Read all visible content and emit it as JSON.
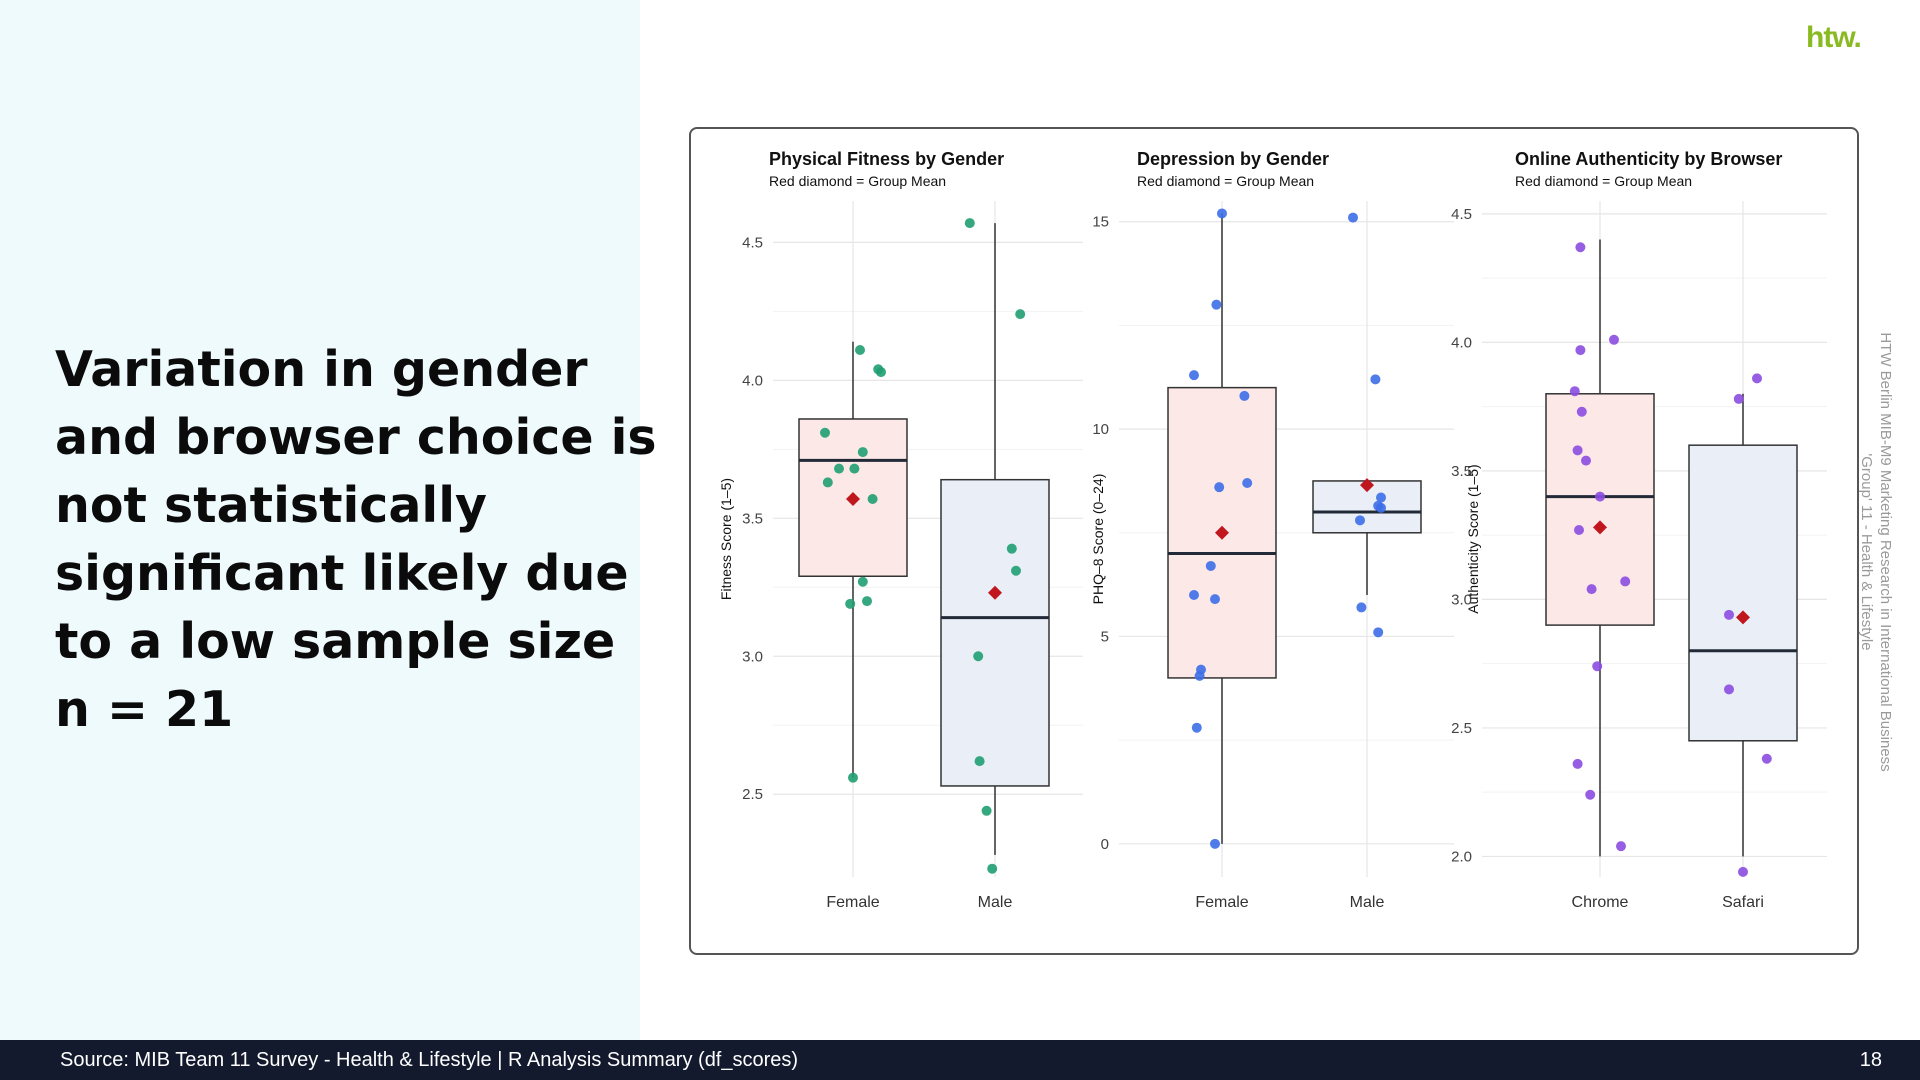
{
  "headline_lines": [
    "Variation in gender",
    "and browser choice is",
    "not statistically",
    "significant likely due",
    "to a low sample size",
    "n = 21"
  ],
  "side_note": {
    "line1": "HTW Berlin MIB-M9 Marketing Research in International Business",
    "line2": "'Group' 11 - Health & Lifestyle"
  },
  "footer": {
    "source": "Source: MIB Team 11 Survey - Health & Lifestyle | R Analysis Summary (df_scores)",
    "page_number": "18"
  },
  "logo": {
    "text": "htw.",
    "color": "#8aba22"
  },
  "colors": {
    "female_box_fill": "#fce9e7",
    "male_box_fill": "#e9eef7",
    "mean_marker": "#c0171f",
    "median_line": "#222a38",
    "grid": "#e6e6e6"
  },
  "chart_data": [
    {
      "type": "box",
      "title": "Physical Fitness by Gender",
      "subtitle": "Red diamond = Group Mean",
      "xlabel": "",
      "ylabel": "Fitness Score (1–5)",
      "ylim": [
        2.2,
        4.65
      ],
      "yticks": [
        2.5,
        3.0,
        3.5,
        4.0,
        4.5
      ],
      "ytick_labels": [
        "2.5",
        "3.0",
        "3.5",
        "4.0",
        "4.5"
      ],
      "categories": [
        "Female",
        "Male"
      ],
      "point_color": "#1f9e72",
      "grid": true,
      "boxes": [
        {
          "q1": 3.29,
          "median": 3.71,
          "q3": 3.86,
          "whisker_low": 2.56,
          "whisker_high": 4.14,
          "mean": 3.57,
          "box_fill": "#fce9e7"
        },
        {
          "q1": 2.53,
          "median": 3.14,
          "q3": 3.64,
          "whisker_low": 2.28,
          "whisker_high": 4.57,
          "mean": 3.23,
          "box_fill": "#e9eef7"
        }
      ],
      "points": [
        [
          [
            -0.2,
            3.81
          ],
          [
            0.05,
            4.11
          ],
          [
            0.18,
            4.04
          ],
          [
            0.2,
            4.03
          ],
          [
            0.07,
            3.74
          ],
          [
            -0.1,
            3.68
          ],
          [
            0.01,
            3.68
          ],
          [
            -0.18,
            3.63
          ],
          [
            0.14,
            3.57
          ],
          [
            0.07,
            3.27
          ],
          [
            -0.02,
            3.19
          ],
          [
            0.1,
            3.2
          ],
          [
            0.0,
            2.56
          ]
        ],
        [
          [
            -0.18,
            4.57
          ],
          [
            0.18,
            4.24
          ],
          [
            0.12,
            3.39
          ],
          [
            0.15,
            3.31
          ],
          [
            -0.12,
            3.0
          ],
          [
            -0.11,
            2.62
          ],
          [
            -0.06,
            2.44
          ],
          [
            -0.02,
            2.23
          ]
        ]
      ]
    },
    {
      "type": "box",
      "title": "Depression by Gender",
      "subtitle": "Red diamond = Group Mean",
      "xlabel": "",
      "ylabel": "PHQ–8 Score (0–24)",
      "ylim": [
        -0.8,
        15.5
      ],
      "yticks": [
        0,
        5,
        10,
        15
      ],
      "ytick_labels": [
        "0",
        "5",
        "10",
        "15"
      ],
      "categories": [
        "Female",
        "Male"
      ],
      "point_color": "#3d6ee8",
      "grid": true,
      "boxes": [
        {
          "q1": 4.0,
          "median": 7.0,
          "q3": 11.0,
          "whisker_low": 0.0,
          "whisker_high": 15.2,
          "mean": 7.5,
          "box_fill": "#fce9e7"
        },
        {
          "q1": 7.5,
          "median": 8.0,
          "q3": 8.75,
          "whisker_low": 6.0,
          "whisker_high": 8.75,
          "mean": 8.65,
          "box_fill": "#e9eef7"
        }
      ],
      "points": [
        [
          [
            0.0,
            15.2
          ],
          [
            -0.04,
            13.0
          ],
          [
            -0.2,
            11.3
          ],
          [
            0.16,
            10.8
          ],
          [
            -0.02,
            8.6
          ],
          [
            0.18,
            8.7
          ],
          [
            -0.08,
            6.7
          ],
          [
            -0.2,
            6.0
          ],
          [
            -0.05,
            5.9
          ],
          [
            -0.15,
            4.2
          ],
          [
            -0.16,
            4.05
          ],
          [
            -0.18,
            2.8
          ],
          [
            -0.05,
            0.0
          ]
        ],
        [
          [
            -0.1,
            15.1
          ],
          [
            0.06,
            11.2
          ],
          [
            0.1,
            8.35
          ],
          [
            0.08,
            8.15
          ],
          [
            0.1,
            8.1
          ],
          [
            -0.05,
            7.8
          ],
          [
            -0.04,
            5.7
          ],
          [
            0.08,
            5.1
          ]
        ]
      ]
    },
    {
      "type": "box",
      "title": "Online Authenticity by Browser",
      "subtitle": "Red diamond = Group Mean",
      "xlabel": "",
      "ylabel": "Authenticity Score (1–5)",
      "ylim": [
        1.92,
        4.55
      ],
      "yticks": [
        2.0,
        2.5,
        3.0,
        3.5,
        4.0,
        4.5
      ],
      "ytick_labels": [
        "2.0",
        "2.5",
        "3.0",
        "3.5",
        "4.0",
        "4.5"
      ],
      "categories": [
        "Chrome",
        "Safari"
      ],
      "point_color": "#8b4de0",
      "grid": true,
      "boxes": [
        {
          "q1": 2.9,
          "median": 3.4,
          "q3": 3.8,
          "whisker_low": 2.0,
          "whisker_high": 4.4,
          "mean": 3.28,
          "box_fill": "#fce9e7"
        },
        {
          "q1": 2.45,
          "median": 2.8,
          "q3": 3.6,
          "whisker_low": 2.0,
          "whisker_high": 3.8,
          "mean": 2.93,
          "box_fill": "#e9eef7"
        }
      ],
      "points": [
        [
          [
            -0.14,
            4.37
          ],
          [
            -0.14,
            3.97
          ],
          [
            0.1,
            4.01
          ],
          [
            -0.18,
            3.81
          ],
          [
            -0.13,
            3.73
          ],
          [
            -0.16,
            3.58
          ],
          [
            -0.1,
            3.54
          ],
          [
            0.0,
            3.4
          ],
          [
            -0.15,
            3.27
          ],
          [
            0.18,
            3.07
          ],
          [
            -0.06,
            3.04
          ],
          [
            -0.02,
            2.74
          ],
          [
            -0.16,
            2.36
          ],
          [
            -0.07,
            2.24
          ],
          [
            0.15,
            2.04
          ]
        ],
        [
          [
            0.1,
            3.86
          ],
          [
            -0.03,
            3.78
          ],
          [
            -0.1,
            2.94
          ],
          [
            -0.1,
            2.65
          ],
          [
            0.17,
            2.38
          ],
          [
            0.0,
            1.94
          ]
        ]
      ]
    }
  ]
}
